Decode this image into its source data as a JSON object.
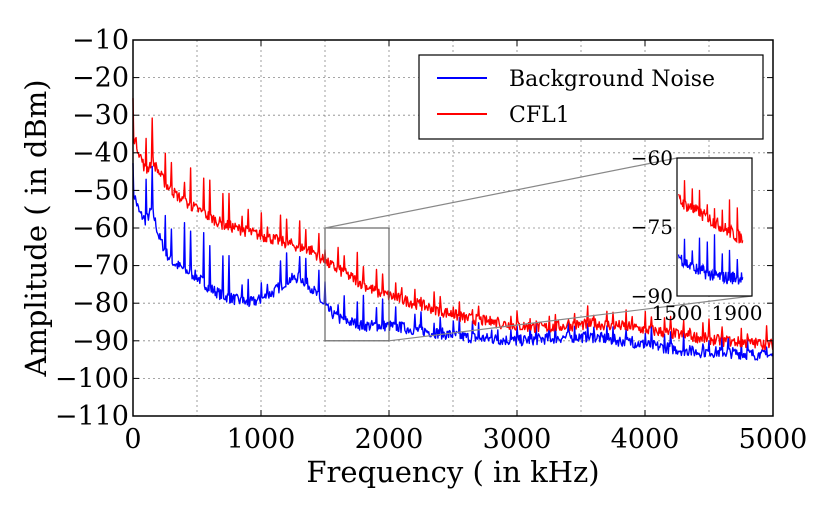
{
  "chart_data": {
    "type": "line",
    "title": "",
    "xlabel": "Frequency ( in kHz)",
    "ylabel": "Amplitude ( in dBm)",
    "xlim": [
      0,
      5000
    ],
    "ylim": [
      -110,
      -10
    ],
    "grid": true,
    "xticks": [
      0,
      1000,
      2000,
      3000,
      4000,
      5000
    ],
    "yticks": [
      -10,
      -20,
      -30,
      -40,
      -50,
      -60,
      -70,
      -80,
      -90,
      -100,
      -110
    ],
    "xtick_labels": [
      "0",
      "1000",
      "2000",
      "3000",
      "4000",
      "5000"
    ],
    "ytick_labels": [
      "−10",
      "−20",
      "−30",
      "−40",
      "−50",
      "−60",
      "−70",
      "−80",
      "−90",
      "−100",
      "−110"
    ],
    "legend_position": "top-right",
    "series": [
      {
        "name": "Background Noise",
        "color": "#0000ff",
        "x": [
          0,
          50,
          100,
          150,
          200,
          250,
          300,
          400,
          500,
          600,
          700,
          800,
          900,
          1000,
          1100,
          1200,
          1300,
          1400,
          1500,
          1600,
          1700,
          1800,
          1900,
          2000,
          2200,
          2400,
          2600,
          2800,
          3000,
          3200,
          3400,
          3600,
          3800,
          4000,
          4200,
          4400,
          4600,
          4800,
          5000
        ],
        "y": [
          -50,
          -56,
          -58,
          -55,
          -62,
          -66,
          -69,
          -71,
          -73,
          -76,
          -78,
          -79,
          -80,
          -79,
          -77,
          -74,
          -73,
          -76,
          -81,
          -84,
          -85,
          -86,
          -86,
          -86,
          -87,
          -88,
          -89,
          -89.5,
          -90,
          -89.5,
          -89,
          -89,
          -90,
          -91,
          -92,
          -93,
          -93,
          -93.5,
          -94
        ]
      },
      {
        "name": "CFL1",
        "color": "#ff0000",
        "x": [
          0,
          50,
          100,
          150,
          200,
          250,
          300,
          400,
          500,
          600,
          700,
          800,
          900,
          1000,
          1100,
          1200,
          1300,
          1400,
          1500,
          1600,
          1700,
          1800,
          1900,
          2000,
          2200,
          2400,
          2600,
          2800,
          3000,
          3200,
          3400,
          3600,
          3800,
          4000,
          4200,
          4400,
          4600,
          4800,
          5000
        ],
        "y": [
          -35,
          -40,
          -45,
          -42,
          -45,
          -48,
          -50,
          -53,
          -55,
          -57,
          -59,
          -60,
          -61,
          -62,
          -63,
          -64,
          -65,
          -66,
          -69,
          -71,
          -73,
          -75,
          -77,
          -78,
          -80,
          -82,
          -84,
          -85,
          -86,
          -86.5,
          -86,
          -85.5,
          -86,
          -87,
          -88,
          -89,
          -90,
          -90.5,
          -91
        ]
      }
    ],
    "zoom_box": {
      "xlim": [
        1500,
        2000
      ],
      "ylim": [
        -90,
        -60
      ]
    },
    "inset": {
      "xtick_labels": [
        "1500",
        "1900"
      ],
      "ytick_labels": [
        "−60",
        "−75",
        "−90"
      ],
      "xticks": [
        1500,
        1900
      ],
      "yticks": [
        -60,
        -75,
        -90
      ]
    }
  }
}
